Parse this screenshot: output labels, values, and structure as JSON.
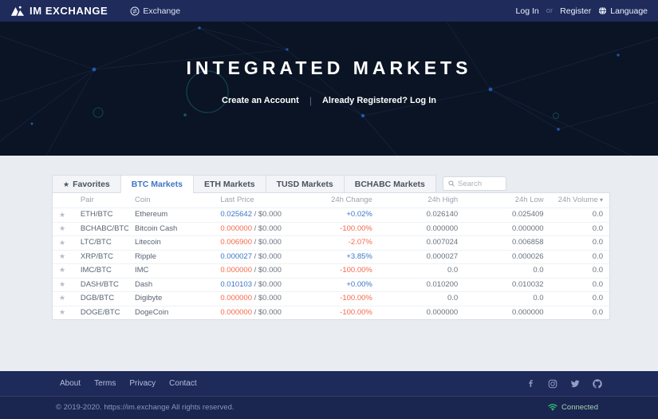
{
  "navbar": {
    "brand": "IM EXCHANGE",
    "exchange_label": "Exchange",
    "login_label": "Log In",
    "or_label": "or",
    "register_label": "Register",
    "language_label": "Language"
  },
  "hero": {
    "title": "INTEGRATED MARKETS",
    "create_account": "Create an Account",
    "separator": "|",
    "already_registered": "Already Registered? Log In"
  },
  "markets": {
    "tabs": [
      {
        "label": "Favorites",
        "icon": "star",
        "active": false
      },
      {
        "label": "BTC Markets",
        "active": true
      },
      {
        "label": "ETH Markets",
        "active": false
      },
      {
        "label": "TUSD Markets",
        "active": false
      },
      {
        "label": "BCHABC Markets",
        "active": false
      }
    ],
    "search_placeholder": "Search",
    "table": {
      "columns": [
        "Pair",
        "Coin",
        "Last Price",
        "24h Change",
        "24h High",
        "24h Low",
        "24h Volume"
      ],
      "volume_sort_caret": "▾",
      "rows": [
        {
          "pair": "ETH/BTC",
          "coin": "Ethereum",
          "price": "0.025642",
          "price_suffix": "/ $0.000",
          "change": "+0.02%",
          "high": "0.026140",
          "low": "0.025409",
          "volume": "0.0",
          "trend": "up"
        },
        {
          "pair": "BCHABC/BTC",
          "coin": "Bitcoin Cash",
          "price": "0.000000",
          "price_suffix": "/ $0.000",
          "change": "-100.00%",
          "high": "0.000000",
          "low": "0.000000",
          "volume": "0.0",
          "trend": "down"
        },
        {
          "pair": "LTC/BTC",
          "coin": "Litecoin",
          "price": "0.006900",
          "price_suffix": "/ $0.000",
          "change": "-2.07%",
          "high": "0.007024",
          "low": "0.006858",
          "volume": "0.0",
          "trend": "down"
        },
        {
          "pair": "XRP/BTC",
          "coin": "Ripple",
          "price": "0.000027",
          "price_suffix": "/ $0.000",
          "change": "+3.85%",
          "high": "0.000027",
          "low": "0.000026",
          "volume": "0.0",
          "trend": "up"
        },
        {
          "pair": "IMC/BTC",
          "coin": "IMC",
          "price": "0.000000",
          "price_suffix": "/ $0.000",
          "change": "-100.00%",
          "high": "0.0",
          "low": "0.0",
          "volume": "0.0",
          "trend": "down"
        },
        {
          "pair": "DASH/BTC",
          "coin": "Dash",
          "price": "0.010103",
          "price_suffix": "/ $0.000",
          "change": "+0.00%",
          "high": "0.010200",
          "low": "0.010032",
          "volume": "0.0",
          "trend": "up"
        },
        {
          "pair": "DGB/BTC",
          "coin": "Digibyte",
          "price": "0.000000",
          "price_suffix": "/ $0.000",
          "change": "-100.00%",
          "high": "0.0",
          "low": "0.0",
          "volume": "0.0",
          "trend": "down"
        },
        {
          "pair": "DOGE/BTC",
          "coin": "DogeCoin",
          "price": "0.000000",
          "price_suffix": "/ $0.000",
          "change": "-100.00%",
          "high": "0.000000",
          "low": "0.000000",
          "volume": "0.0",
          "trend": "down"
        }
      ]
    }
  },
  "footer": {
    "links": [
      "About",
      "Terms",
      "Privacy",
      "Contact"
    ],
    "social": [
      "facebook",
      "instagram",
      "twitter",
      "github"
    ],
    "copyright": "© 2019-2020. https://im.exchange All rights reserved.",
    "connection_status": "Connected"
  },
  "colors": {
    "up": "#3d76c6",
    "down": "#f5694c",
    "connected_green": "#2ecc71",
    "navbar_bg": "#1e2b5b",
    "hero_bg": "#0a1424"
  }
}
